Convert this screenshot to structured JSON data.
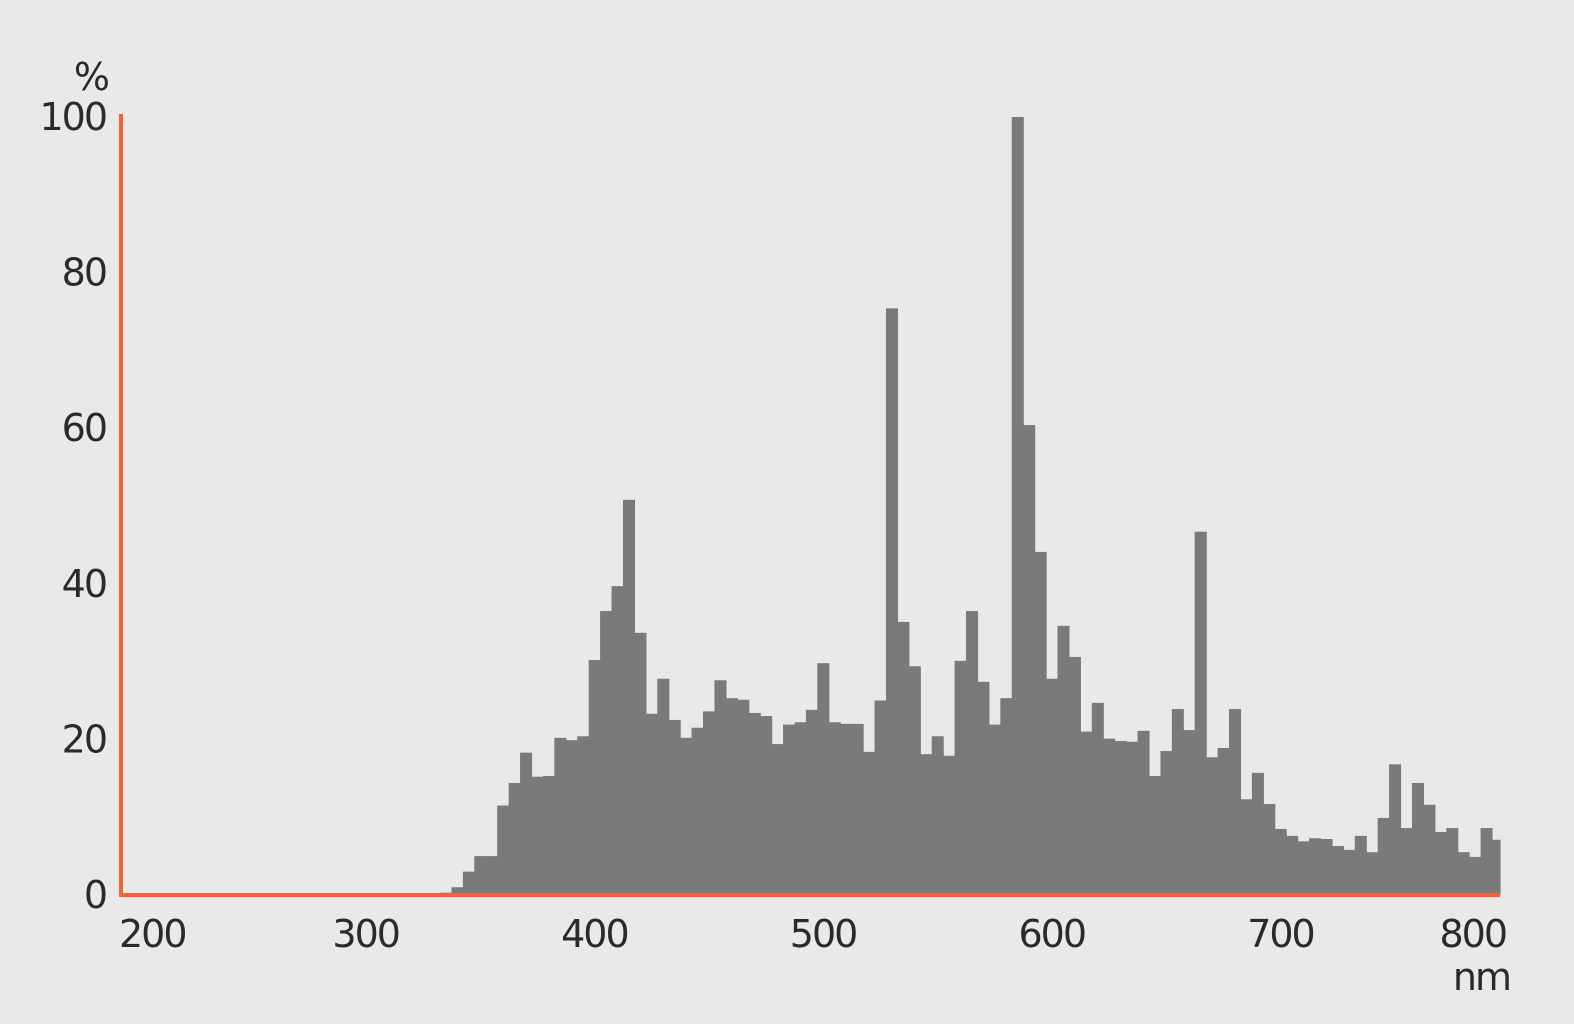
{
  "chart_data": {
    "type": "bar",
    "title": "",
    "xlabel": "nm",
    "ylabel": "%",
    "xlim": [
      193,
      796
    ],
    "ylim": [
      0,
      100
    ],
    "x_ticks": [
      200,
      300,
      400,
      500,
      600,
      700,
      800
    ],
    "y_ticks": [
      0,
      20,
      40,
      60,
      80,
      100
    ],
    "bin_width": 5,
    "grid": false,
    "colors": {
      "bars": "#7b797a",
      "axes": "#f26532",
      "background": "#e9e9e9"
    },
    "x": [
      335,
      340,
      345,
      350,
      355,
      360,
      365,
      370,
      375,
      380,
      385,
      390,
      395,
      400,
      405,
      410,
      415,
      420,
      425,
      430,
      435,
      440,
      445,
      450,
      455,
      460,
      465,
      470,
      475,
      480,
      485,
      490,
      495,
      500,
      505,
      510,
      515,
      520,
      525,
      530,
      535,
      540,
      545,
      550,
      555,
      560,
      565,
      570,
      575,
      580,
      585,
      590,
      595,
      600,
      605,
      610,
      615,
      620,
      625,
      630,
      635,
      640,
      645,
      650,
      655,
      660,
      665,
      670,
      675,
      680,
      685,
      690,
      695,
      700,
      705,
      710,
      715,
      720,
      725,
      730,
      735,
      740,
      745,
      750,
      755,
      760,
      765,
      770,
      775,
      780,
      785,
      790,
      795
    ],
    "values": [
      0.3,
      1,
      3,
      5,
      5,
      11.5,
      14.4,
      18.3,
      15.2,
      15.3,
      20.2,
      19.9,
      20.4,
      30.2,
      36.5,
      39.7,
      50.8,
      33.7,
      23.3,
      27.8,
      22.5,
      20.2,
      21.5,
      23.6,
      27.6,
      25.3,
      25.1,
      23.4,
      23,
      19.4,
      21.9,
      22.2,
      23.8,
      29.8,
      22.2,
      22,
      22,
      18.4,
      25,
      75.4,
      35.1,
      29.4,
      18.1,
      20.4,
      17.9,
      30.1,
      36.5,
      27.4,
      21.9,
      25.3,
      100,
      60.4,
      44.1,
      27.8,
      34.6,
      30.6,
      21,
      24.7,
      20.1,
      19.8,
      19.7,
      21.1,
      15.3,
      18.5,
      23.9,
      21.2,
      46.7,
      17.7,
      18.9,
      23.9,
      12.3,
      15.7,
      11.7,
      8.5,
      7.6,
      6.9,
      7.3,
      7.2,
      6.3,
      5.8,
      7.6,
      5.5,
      9.9,
      16.8,
      8.6,
      14.4,
      11.6,
      8.1,
      8.6,
      5.5,
      4.9,
      8.6,
      7.1
    ]
  }
}
